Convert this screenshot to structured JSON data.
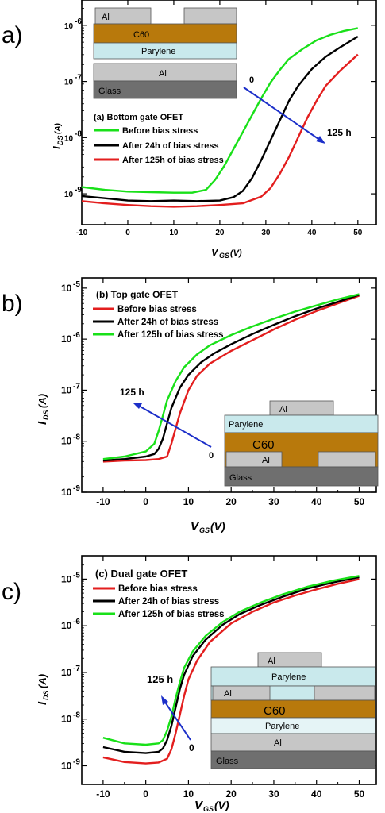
{
  "figure": {
    "panels": [
      {
        "letter": "a)",
        "chart_data": {
          "type": "line",
          "title": "(a) Bottom gate OFET",
          "xlabel": "V",
          "xlabel_sub": "GS",
          "xlabel_unit": "(V)",
          "ylabel": "I",
          "ylabel_sub": "DS",
          "ylabel_unit": "(A)",
          "xlim": [
            -10,
            54
          ],
          "ylim_log10": [
            -9.55,
            -5.55
          ],
          "xticks": [
            -10,
            0,
            10,
            20,
            30,
            40,
            50
          ],
          "xtick_labels": [
            "-10",
            "0",
            "10",
            "20",
            "30",
            "40",
            "50"
          ],
          "yticks_log10": [
            -9,
            -8,
            -7,
            -6
          ],
          "ytick_exponents": [
            "-9",
            "-8",
            "-7",
            "-6"
          ],
          "grid": false,
          "legend_position": "middle-left",
          "series": [
            {
              "name": "Before bias stress",
              "color": "#19e019",
              "x": [
                -10,
                -5,
                0,
                5,
                10,
                14,
                17,
                19,
                21,
                23,
                25,
                27,
                29,
                31,
                33,
                35,
                38,
                41,
                44,
                47,
                50
              ],
              "y_log10": [
                -8.88,
                -8.93,
                -8.96,
                -8.97,
                -8.98,
                -8.98,
                -8.93,
                -8.75,
                -8.5,
                -8.2,
                -7.9,
                -7.6,
                -7.3,
                -7.02,
                -6.8,
                -6.6,
                -6.42,
                -6.27,
                -6.17,
                -6.1,
                -6.05
              ]
            },
            {
              "name": "After 24h of bias stress",
              "color": "#000000",
              "x": [
                -10,
                -5,
                0,
                5,
                10,
                15,
                20,
                23,
                25,
                27,
                29,
                31,
                33,
                35,
                37,
                40,
                43,
                46,
                50
              ],
              "y_log10": [
                -9.04,
                -9.08,
                -9.12,
                -9.13,
                -9.12,
                -9.13,
                -9.12,
                -9.06,
                -8.95,
                -8.72,
                -8.4,
                -8.05,
                -7.7,
                -7.35,
                -7.08,
                -6.78,
                -6.56,
                -6.4,
                -6.2
              ]
            },
            {
              "name": "After 125h of bias stress",
              "color": "#e31e1e",
              "x": [
                -10,
                -5,
                0,
                5,
                10,
                15,
                20,
                25,
                29,
                31,
                33,
                35,
                37,
                39,
                41,
                43,
                46,
                50
              ],
              "y_log10": [
                -9.13,
                -9.17,
                -9.2,
                -9.22,
                -9.23,
                -9.22,
                -9.2,
                -9.17,
                -9.05,
                -8.9,
                -8.65,
                -8.35,
                -8.0,
                -7.65,
                -7.35,
                -7.08,
                -6.82,
                -6.52
              ]
            }
          ],
          "annotations": {
            "arrow_start": "0",
            "arrow_end": "125 h"
          }
        },
        "inset": {
          "layers": [
            "Al",
            "C60",
            "Parylene",
            "Al",
            "Glass"
          ]
        }
      },
      {
        "letter": "b)",
        "chart_data": {
          "type": "line",
          "title": "(b) Top gate OFET",
          "xlabel": "V",
          "xlabel_sub": "GS",
          "xlabel_unit": "(V)",
          "ylabel": "I",
          "ylabel_sub": "DS",
          "ylabel_unit": "(A)",
          "xlim": [
            -15,
            54
          ],
          "ylim_log10": [
            -9,
            -4.8
          ],
          "xticks": [
            -10,
            0,
            10,
            20,
            30,
            40,
            50
          ],
          "xtick_labels": [
            "-10",
            "0",
            "10",
            "20",
            "30",
            "40",
            "50"
          ],
          "yticks_log10": [
            -9,
            -8,
            -7,
            -6,
            -5
          ],
          "ytick_exponents": [
            "-9",
            "-8",
            "-7",
            "-6",
            "-5"
          ],
          "grid": false,
          "legend_position": "top-left",
          "series": [
            {
              "name": "Before bias stress",
              "color": "#e31e1e",
              "x": [
                -10,
                -5,
                0,
                3,
                5,
                6,
                7,
                8,
                10,
                12,
                15,
                20,
                25,
                30,
                35,
                40,
                45,
                50
              ],
              "y_log10": [
                -8.4,
                -8.38,
                -8.37,
                -8.35,
                -8.3,
                -8.05,
                -7.75,
                -7.45,
                -7.0,
                -6.72,
                -6.48,
                -6.23,
                -6.02,
                -5.81,
                -5.62,
                -5.45,
                -5.3,
                -5.15
              ]
            },
            {
              "name": "After 24h of bias stress",
              "color": "#000000",
              "x": [
                -10,
                -5,
                0,
                2,
                3,
                4,
                5,
                6,
                8,
                10,
                13,
                16,
                20,
                25,
                30,
                35,
                40,
                45,
                50
              ],
              "y_log10": [
                -8.38,
                -8.35,
                -8.3,
                -8.25,
                -8.15,
                -7.95,
                -7.65,
                -7.35,
                -6.95,
                -6.7,
                -6.45,
                -6.28,
                -6.1,
                -5.9,
                -5.72,
                -5.55,
                -5.4,
                -5.27,
                -5.13
              ]
            },
            {
              "name": "After 125h of bias stress",
              "color": "#19e019",
              "x": [
                -10,
                -5,
                0,
                2,
                3,
                4,
                5,
                7,
                9,
                12,
                15,
                20,
                25,
                30,
                35,
                40,
                45,
                50
              ],
              "y_log10": [
                -8.35,
                -8.3,
                -8.2,
                -8.05,
                -7.8,
                -7.5,
                -7.2,
                -6.82,
                -6.55,
                -6.3,
                -6.12,
                -5.92,
                -5.75,
                -5.6,
                -5.46,
                -5.34,
                -5.22,
                -5.12
              ]
            }
          ],
          "annotations": {
            "arrow_start": "0",
            "arrow_end": "125 h"
          }
        },
        "inset": {
          "layers": [
            "Al",
            "Parylene",
            "C60",
            "Al",
            "Al",
            "Glass"
          ]
        }
      },
      {
        "letter": "c)",
        "chart_data": {
          "type": "line",
          "title": "(c) Dual gate OFET",
          "xlabel": "V",
          "xlabel_sub": "GS",
          "xlabel_unit": "(V)",
          "ylabel": "I",
          "ylabel_sub": "DS",
          "ylabel_unit": "(A)",
          "xlim": [
            -15,
            54
          ],
          "ylim_log10": [
            -9.4,
            -4.5
          ],
          "xticks": [
            -10,
            0,
            10,
            20,
            30,
            40,
            50
          ],
          "xtick_labels": [
            "-10",
            "0",
            "10",
            "20",
            "30",
            "40",
            "50"
          ],
          "yticks_log10": [
            -9,
            -8,
            -7,
            -6,
            -5
          ],
          "ytick_exponents": [
            "-9",
            "-8",
            "-7",
            "-6",
            "-5"
          ],
          "grid": false,
          "legend_position": "top-left",
          "series": [
            {
              "name": "Before bias stress",
              "color": "#e31e1e",
              "x": [
                -10,
                -5,
                0,
                3,
                5,
                6,
                7,
                8,
                9,
                10,
                12,
                15,
                20,
                25,
                30,
                35,
                40,
                45,
                50
              ],
              "y_log10": [
                -8.82,
                -8.92,
                -8.95,
                -8.93,
                -8.85,
                -8.65,
                -8.3,
                -7.9,
                -7.5,
                -7.15,
                -6.75,
                -6.35,
                -5.95,
                -5.7,
                -5.5,
                -5.35,
                -5.22,
                -5.1,
                -5.0
              ]
            },
            {
              "name": "After 24h of bias stress",
              "color": "#000000",
              "x": [
                -10,
                -5,
                0,
                3,
                4,
                5,
                6,
                7,
                8,
                9,
                11,
                14,
                18,
                22,
                27,
                32,
                38,
                44,
                50
              ],
              "y_log10": [
                -8.6,
                -8.7,
                -8.73,
                -8.7,
                -8.63,
                -8.45,
                -8.15,
                -7.75,
                -7.35,
                -7.05,
                -6.65,
                -6.3,
                -5.98,
                -5.75,
                -5.55,
                -5.38,
                -5.2,
                -5.07,
                -4.96
              ]
            },
            {
              "name": "After 125h of bias stress",
              "color": "#19e019",
              "x": [
                -10,
                -5,
                0,
                3,
                4,
                5,
                6,
                7,
                8,
                9,
                11,
                14,
                18,
                22,
                27,
                32,
                38,
                44,
                50
              ],
              "y_log10": [
                -8.4,
                -8.52,
                -8.55,
                -8.52,
                -8.45,
                -8.25,
                -7.95,
                -7.55,
                -7.2,
                -6.9,
                -6.55,
                -6.22,
                -5.92,
                -5.7,
                -5.5,
                -5.33,
                -5.16,
                -5.03,
                -4.93
              ]
            }
          ],
          "annotations": {
            "arrow_start": "0",
            "arrow_end": "125 h"
          }
        },
        "inset": {
          "layers": [
            "Al",
            "Parylene",
            "Al",
            "Al",
            "C60",
            "Parylene",
            "Al",
            "Glass"
          ]
        }
      }
    ],
    "colors": {
      "arrow": "#1c2fc9",
      "c60": "#b8790c",
      "parylene": "#c9e9ec",
      "al": "#c6c6c6",
      "glass": "#6f6f6f"
    }
  }
}
